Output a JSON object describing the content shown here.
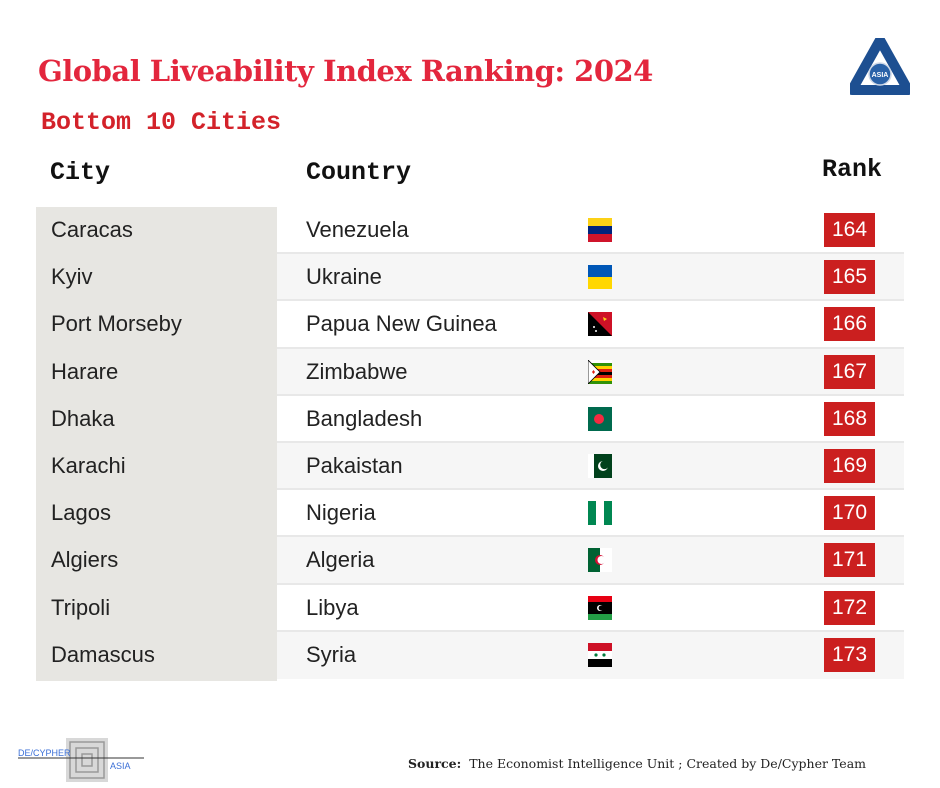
{
  "title": "Global Liveability Index Ranking:  2024",
  "subtitle": "Bottom 10 Cities",
  "logo": {
    "text": "ASIA",
    "ring_words": [
      "Social",
      "Understanding",
      "Insight"
    ]
  },
  "headers": {
    "city": "City",
    "country": "Country",
    "rank": "Rank"
  },
  "rows": [
    {
      "city": "Caracas",
      "country": "Venezuela",
      "flag": "venezuela-flag",
      "rank": "164"
    },
    {
      "city": "Kyiv",
      "country": "Ukraine",
      "flag": "ukraine-flag",
      "rank": "165"
    },
    {
      "city": "Port Morseby",
      "country": "Papua New Guinea",
      "flag": "papua-new-guinea-flag",
      "rank": "166"
    },
    {
      "city": "Harare",
      "country": "Zimbabwe",
      "flag": "zimbabwe-flag",
      "rank": "167"
    },
    {
      "city": "Dhaka",
      "country": "Bangladesh",
      "flag": "bangladesh-flag",
      "rank": "168"
    },
    {
      "city": "Karachi",
      "country": "Pakaistan",
      "flag": "pakistan-flag",
      "rank": "169"
    },
    {
      "city": "Lagos",
      "country": "Nigeria",
      "flag": "nigeria-flag",
      "rank": "170"
    },
    {
      "city": "Algiers",
      "country": "Algeria",
      "flag": "algeria-flag",
      "rank": "171"
    },
    {
      "city": "Tripoli",
      "country": "Libya",
      "flag": "libya-flag",
      "rank": "172"
    },
    {
      "city": "Damascus",
      "country": "Syria",
      "flag": "syria-flag",
      "rank": "173"
    }
  ],
  "source": {
    "label": "Source:",
    "text": "The Economist Intelligence Unit ; Created by De/Cypher Team"
  },
  "footer_logo": {
    "left": "DE/CYPHER",
    "right": "ASIA"
  },
  "colors": {
    "title": "#e3263d",
    "rank_bg": "#cb1f1f",
    "city_bg": "#e7e6e2"
  }
}
